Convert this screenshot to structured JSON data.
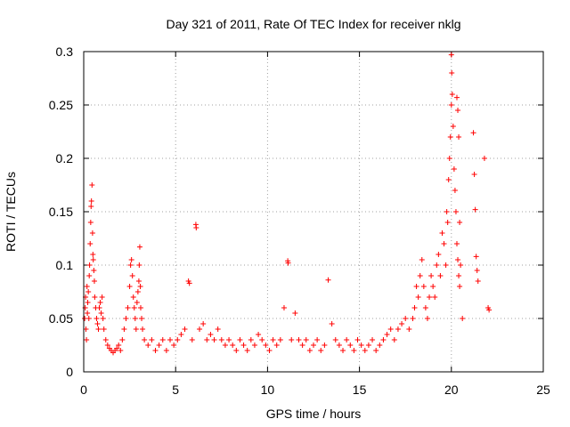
{
  "chart_data": {
    "type": "scatter",
    "title": "Day 321 of 2011, Rate Of TEC Index for receiver nklg",
    "xlabel": "GPS time / hours",
    "ylabel": "ROTI / TECUs",
    "xlim": [
      0,
      25
    ],
    "ylim": [
      0,
      0.3
    ],
    "x_ticks": [
      0,
      5,
      10,
      15,
      20,
      25
    ],
    "y_ticks": [
      0,
      0.05,
      0.1,
      0.15,
      0.2,
      0.25,
      0.3
    ],
    "x_tick_labels": [
      "0",
      "5",
      "10",
      "15",
      "20",
      "25"
    ],
    "y_tick_labels": [
      "0",
      "0.05",
      "0.1",
      "0.15",
      "0.2",
      "0.25",
      "0.3"
    ],
    "grid": true,
    "marker": "+",
    "marker_color": "#ff0000",
    "series": [
      {
        "points": [
          [
            0.05,
            0.05
          ],
          [
            0.08,
            0.06
          ],
          [
            0.1,
            0.07
          ],
          [
            0.12,
            0.04
          ],
          [
            0.15,
            0.03
          ],
          [
            0.18,
            0.08
          ],
          [
            0.2,
            0.055
          ],
          [
            0.22,
            0.065
          ],
          [
            0.25,
            0.075
          ],
          [
            0.28,
            0.05
          ],
          [
            0.3,
            0.09
          ],
          [
            0.32,
            0.1
          ],
          [
            0.35,
            0.12
          ],
          [
            0.38,
            0.14
          ],
          [
            0.4,
            0.155
          ],
          [
            0.42,
            0.16
          ],
          [
            0.45,
            0.175
          ],
          [
            0.48,
            0.13
          ],
          [
            0.5,
            0.11
          ],
          [
            0.52,
            0.105
          ],
          [
            0.55,
            0.095
          ],
          [
            0.58,
            0.085
          ],
          [
            0.6,
            0.07
          ],
          [
            0.65,
            0.06
          ],
          [
            0.7,
            0.05
          ],
          [
            0.75,
            0.045
          ],
          [
            0.8,
            0.04
          ],
          [
            0.85,
            0.06
          ],
          [
            0.9,
            0.065
          ],
          [
            0.95,
            0.055
          ],
          [
            1.0,
            0.07
          ],
          [
            1.05,
            0.05
          ],
          [
            1.1,
            0.04
          ],
          [
            1.2,
            0.03
          ],
          [
            1.3,
            0.025
          ],
          [
            1.4,
            0.022
          ],
          [
            1.5,
            0.02
          ],
          [
            1.6,
            0.018
          ],
          [
            1.7,
            0.02
          ],
          [
            1.8,
            0.022
          ],
          [
            1.9,
            0.025
          ],
          [
            2.0,
            0.02
          ],
          [
            2.1,
            0.03
          ],
          [
            2.2,
            0.04
          ],
          [
            2.3,
            0.05
          ],
          [
            2.4,
            0.06
          ],
          [
            2.5,
            0.08
          ],
          [
            2.55,
            0.1
          ],
          [
            2.6,
            0.105
          ],
          [
            2.65,
            0.09
          ],
          [
            2.7,
            0.07
          ],
          [
            2.75,
            0.06
          ],
          [
            2.8,
            0.05
          ],
          [
            2.85,
            0.04
          ],
          [
            2.9,
            0.065
          ],
          [
            2.95,
            0.075
          ],
          [
            3.0,
            0.085
          ],
          [
            3.02,
            0.1
          ],
          [
            3.05,
            0.117
          ],
          [
            3.08,
            0.08
          ],
          [
            3.1,
            0.06
          ],
          [
            3.15,
            0.05
          ],
          [
            3.2,
            0.04
          ],
          [
            3.3,
            0.03
          ],
          [
            3.5,
            0.025
          ],
          [
            3.7,
            0.03
          ],
          [
            3.9,
            0.02
          ],
          [
            4.1,
            0.025
          ],
          [
            4.3,
            0.03
          ],
          [
            4.5,
            0.02
          ],
          [
            4.7,
            0.03
          ],
          [
            4.9,
            0.025
          ],
          [
            5.1,
            0.03
          ],
          [
            5.3,
            0.035
          ],
          [
            5.5,
            0.04
          ],
          [
            5.7,
            0.085
          ],
          [
            5.75,
            0.083
          ],
          [
            5.9,
            0.03
          ],
          [
            6.1,
            0.138
          ],
          [
            6.12,
            0.135
          ],
          [
            6.3,
            0.04
          ],
          [
            6.5,
            0.045
          ],
          [
            6.7,
            0.03
          ],
          [
            6.9,
            0.035
          ],
          [
            7.1,
            0.03
          ],
          [
            7.3,
            0.04
          ],
          [
            7.5,
            0.03
          ],
          [
            7.7,
            0.025
          ],
          [
            7.9,
            0.03
          ],
          [
            8.1,
            0.025
          ],
          [
            8.3,
            0.02
          ],
          [
            8.5,
            0.03
          ],
          [
            8.7,
            0.025
          ],
          [
            8.9,
            0.02
          ],
          [
            9.1,
            0.03
          ],
          [
            9.3,
            0.025
          ],
          [
            9.5,
            0.035
          ],
          [
            9.7,
            0.03
          ],
          [
            9.9,
            0.025
          ],
          [
            10.1,
            0.02
          ],
          [
            10.3,
            0.03
          ],
          [
            10.5,
            0.025
          ],
          [
            10.7,
            0.03
          ],
          [
            10.9,
            0.06
          ],
          [
            11.1,
            0.104
          ],
          [
            11.12,
            0.102
          ],
          [
            11.3,
            0.03
          ],
          [
            11.5,
            0.055
          ],
          [
            11.7,
            0.03
          ],
          [
            11.9,
            0.025
          ],
          [
            12.1,
            0.03
          ],
          [
            12.3,
            0.02
          ],
          [
            12.5,
            0.025
          ],
          [
            12.7,
            0.03
          ],
          [
            12.9,
            0.02
          ],
          [
            13.1,
            0.025
          ],
          [
            13.3,
            0.086
          ],
          [
            13.5,
            0.045
          ],
          [
            13.7,
            0.03
          ],
          [
            13.9,
            0.025
          ],
          [
            14.1,
            0.02
          ],
          [
            14.3,
            0.03
          ],
          [
            14.5,
            0.025
          ],
          [
            14.7,
            0.02
          ],
          [
            14.9,
            0.03
          ],
          [
            15.1,
            0.025
          ],
          [
            15.3,
            0.02
          ],
          [
            15.5,
            0.025
          ],
          [
            15.7,
            0.03
          ],
          [
            15.9,
            0.02
          ],
          [
            16.1,
            0.025
          ],
          [
            16.3,
            0.03
          ],
          [
            16.5,
            0.035
          ],
          [
            16.7,
            0.04
          ],
          [
            16.9,
            0.03
          ],
          [
            17.1,
            0.04
          ],
          [
            17.3,
            0.045
          ],
          [
            17.5,
            0.05
          ],
          [
            17.7,
            0.04
          ],
          [
            17.9,
            0.05
          ],
          [
            18.0,
            0.06
          ],
          [
            18.1,
            0.08
          ],
          [
            18.2,
            0.07
          ],
          [
            18.3,
            0.09
          ],
          [
            18.4,
            0.105
          ],
          [
            18.5,
            0.08
          ],
          [
            18.6,
            0.06
          ],
          [
            18.7,
            0.05
          ],
          [
            18.8,
            0.07
          ],
          [
            18.9,
            0.09
          ],
          [
            19.0,
            0.08
          ],
          [
            19.1,
            0.07
          ],
          [
            19.2,
            0.1
          ],
          [
            19.3,
            0.11
          ],
          [
            19.4,
            0.09
          ],
          [
            19.5,
            0.13
          ],
          [
            19.6,
            0.12
          ],
          [
            19.7,
            0.1
          ],
          [
            19.75,
            0.15
          ],
          [
            19.8,
            0.14
          ],
          [
            19.85,
            0.18
          ],
          [
            19.9,
            0.2
          ],
          [
            19.95,
            0.22
          ],
          [
            20.0,
            0.25
          ],
          [
            20.0,
            0.297
          ],
          [
            20.02,
            0.28
          ],
          [
            20.05,
            0.26
          ],
          [
            20.1,
            0.23
          ],
          [
            20.15,
            0.19
          ],
          [
            20.2,
            0.17
          ],
          [
            20.25,
            0.15
          ],
          [
            20.3,
            0.12
          ],
          [
            20.35,
            0.105
          ],
          [
            20.4,
            0.09
          ],
          [
            20.45,
            0.08
          ],
          [
            20.5,
            0.1
          ],
          [
            20.3,
            0.257
          ],
          [
            20.35,
            0.245
          ],
          [
            20.4,
            0.22
          ],
          [
            20.45,
            0.14
          ],
          [
            21.2,
            0.224
          ],
          [
            21.25,
            0.185
          ],
          [
            21.3,
            0.152
          ],
          [
            21.35,
            0.108
          ],
          [
            21.4,
            0.095
          ],
          [
            21.45,
            0.085
          ],
          [
            21.8,
            0.2
          ],
          [
            22.0,
            0.06
          ],
          [
            22.05,
            0.058
          ],
          [
            20.6,
            0.05
          ]
        ]
      }
    ]
  }
}
